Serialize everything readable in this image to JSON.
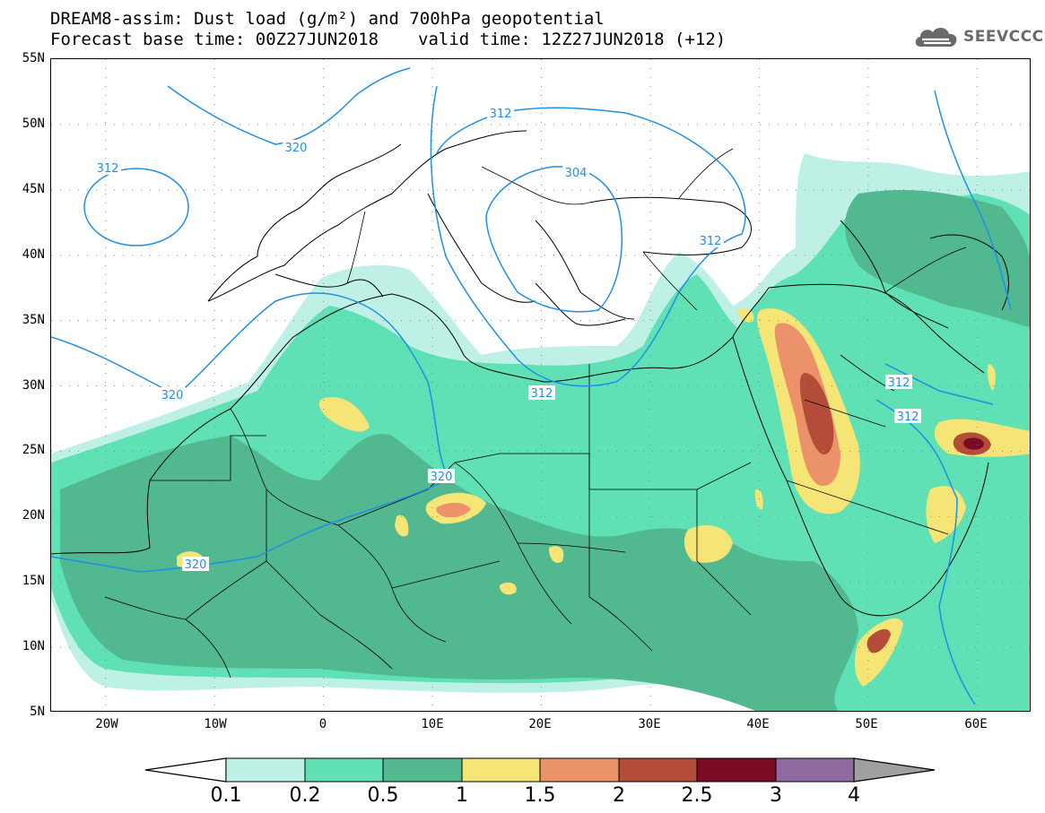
{
  "header": {
    "title_line1": "DREAM8-assim: Dust load (g/m²) and 700hPa geopotential",
    "base_time": "Forecast base time: 00Z27JUN2018",
    "valid_time": "valid time: 12Z27JUN2018 (+12)"
  },
  "logo": {
    "text": "SEEVCCC",
    "icon": "cloud-logo-icon"
  },
  "map": {
    "lon_range": [
      -25,
      65
    ],
    "lat_range": [
      5,
      55
    ],
    "lat_labels": [
      "55N",
      "50N",
      "45N",
      "40N",
      "35N",
      "30N",
      "25N",
      "20N",
      "15N",
      "10N",
      "5N"
    ],
    "lon_labels": [
      "20W",
      "10W",
      "0",
      "10E",
      "20E",
      "30E",
      "40E",
      "50E",
      "60E"
    ],
    "contour_labels": [
      "312",
      "320",
      "312",
      "304",
      "312",
      "320",
      "312",
      "312",
      "312",
      "320",
      "320"
    ],
    "contour_color": "#1e90e6",
    "fill_colors": {
      "c01": "#bff0e6",
      "c02": "#5fe0b5",
      "c05": "#52b890",
      "c1": "#f5e476",
      "c15": "#eb926a",
      "c2": "#b34d3a",
      "c25": "#7b0a25",
      "c3": "#8e6aa0",
      "c4": "#a0a0a0"
    }
  },
  "colorbar": {
    "labels": [
      "0.1",
      "0.2",
      "0.5",
      "1",
      "1.5",
      "2",
      "2.5",
      "3",
      "4"
    ],
    "colors": [
      "#bff0e6",
      "#5fe0b5",
      "#52b890",
      "#f5e476",
      "#eb926a",
      "#b34d3a",
      "#7b0a25",
      "#8e6aa0"
    ],
    "over_color": "#a0a0a0",
    "under_color": "#ffffff"
  }
}
